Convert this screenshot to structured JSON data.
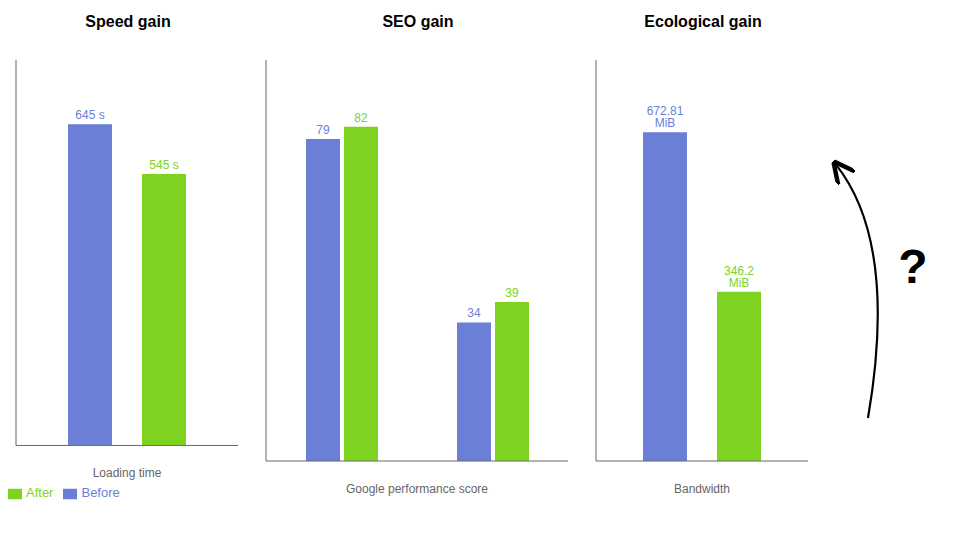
{
  "chart_data": [
    {
      "type": "bar",
      "title": "Speed gain",
      "x_label": "Loading time",
      "categories": [
        null
      ],
      "series": [
        {
          "name": "Before",
          "color": "#6b7fd7",
          "values": [
            645
          ],
          "value_labels": [
            "645 s"
          ]
        },
        {
          "name": "After",
          "color": "#7ed321",
          "values": [
            545
          ],
          "value_labels": [
            "545 s"
          ]
        }
      ],
      "ylim": [
        0,
        774
      ],
      "data_labels": true,
      "tick_labels": false,
      "legend": "lower left"
    },
    {
      "type": "bar",
      "title": "SEO gain",
      "x_label": "Google performance score",
      "categories": [
        null,
        null
      ],
      "series": [
        {
          "name": "Before",
          "color": "#6b7fd7",
          "values": [
            79,
            34
          ]
        },
        {
          "name": "After",
          "color": "#7ed321",
          "values": [
            82,
            39
          ]
        }
      ],
      "ylim": [
        0,
        98.4
      ],
      "data_labels": true,
      "tick_labels": false
    },
    {
      "type": "bar",
      "title": "Ecological gain",
      "x_label": "Bandwidth",
      "categories": [
        null
      ],
      "series": [
        {
          "name": "Before",
          "color": "#6b7fd7",
          "values": [
            672.81
          ],
          "value_labels": [
            "672.81 MiB"
          ]
        },
        {
          "name": "After",
          "color": "#7ed321",
          "values": [
            346.2
          ],
          "value_labels": [
            "346.2 MiB"
          ]
        }
      ],
      "ylim": [
        0,
        820.8282
      ],
      "data_labels": true,
      "tick_labels": false,
      "annotation": "?"
    }
  ]
}
